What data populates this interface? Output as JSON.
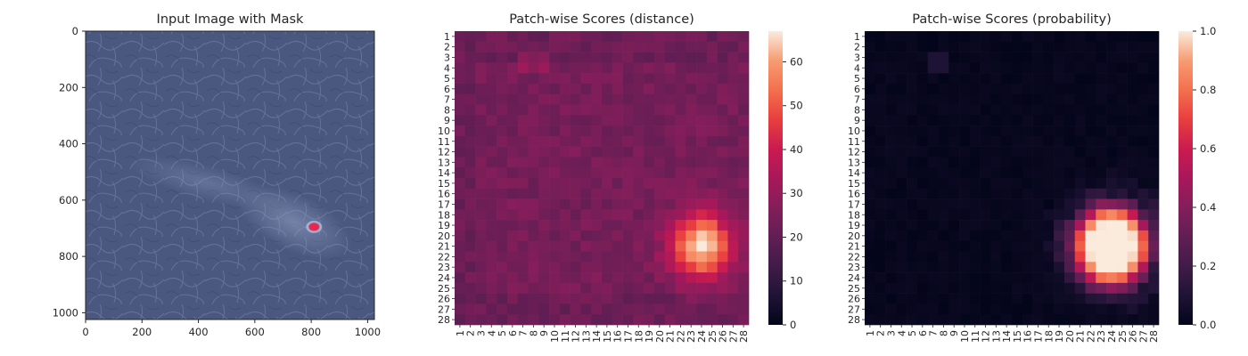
{
  "chart_data": [
    {
      "type": "image",
      "title": "Input Image with Mask",
      "xticks": [
        "0",
        "200",
        "400",
        "600",
        "800",
        "1000"
      ],
      "yticks": [
        "0",
        "200",
        "400",
        "600",
        "800",
        "1000"
      ],
      "xlim": [
        0,
        1024
      ],
      "ylim": [
        1024,
        0
      ],
      "mask_center": [
        810,
        695
      ],
      "mask_color": "#e8284f",
      "background_color": "#4a5880"
    },
    {
      "type": "heatmap",
      "title": "Patch-wise Scores (distance)",
      "grid_size": 28,
      "row_labels": [
        "1",
        "2",
        "3",
        "4",
        "5",
        "6",
        "7",
        "8",
        "9",
        "10",
        "11",
        "12",
        "13",
        "14",
        "15",
        "16",
        "17",
        "18",
        "19",
        "20",
        "21",
        "22",
        "23",
        "24",
        "25",
        "26",
        "27",
        "28"
      ],
      "col_labels": [
        "1",
        "2",
        "3",
        "4",
        "5",
        "6",
        "7",
        "8",
        "9",
        "10",
        "11",
        "12",
        "13",
        "14",
        "15",
        "16",
        "17",
        "18",
        "19",
        "20",
        "21",
        "22",
        "23",
        "24",
        "25",
        "26",
        "27",
        "28"
      ],
      "colorbar_ticks": [
        "0",
        "10",
        "20",
        "30",
        "40",
        "50",
        "60"
      ],
      "vmin": 0,
      "vmax": 67,
      "base_level": 24,
      "hotspot": {
        "center_col": 24,
        "center_row": 21,
        "peak": 67
      },
      "colormap": "rocket"
    },
    {
      "type": "heatmap",
      "title": "Patch-wise Scores (probability)",
      "grid_size": 28,
      "row_labels": [
        "1",
        "2",
        "3",
        "4",
        "5",
        "6",
        "7",
        "8",
        "9",
        "10",
        "11",
        "12",
        "13",
        "14",
        "15",
        "16",
        "17",
        "18",
        "19",
        "20",
        "21",
        "22",
        "23",
        "24",
        "25",
        "26",
        "27",
        "28"
      ],
      "col_labels": [
        "1",
        "2",
        "3",
        "4",
        "5",
        "6",
        "7",
        "8",
        "9",
        "10",
        "11",
        "12",
        "13",
        "14",
        "15",
        "16",
        "17",
        "18",
        "19",
        "20",
        "21",
        "22",
        "23",
        "24",
        "25",
        "26",
        "27",
        "28"
      ],
      "colorbar_ticks": [
        "0.0",
        "0.2",
        "0.4",
        "0.6",
        "0.8",
        "1.0"
      ],
      "vmin": 0.0,
      "vmax": 1.0,
      "hotspot": {
        "center_col": 24,
        "center_row": 21,
        "peak": 1.0
      },
      "colormap": "rocket"
    }
  ]
}
